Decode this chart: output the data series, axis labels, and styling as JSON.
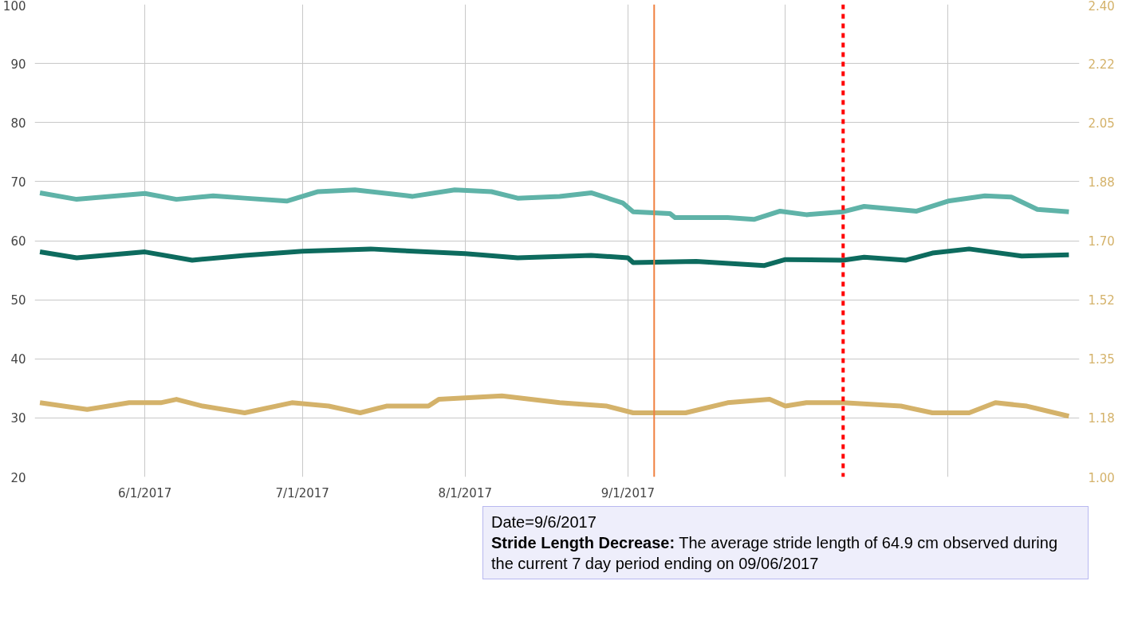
{
  "chart_data": {
    "type": "line",
    "xlim": [
      "2017-05-11",
      "2017-11-26"
    ],
    "ylim": [
      20,
      100
    ],
    "y2lim": [
      1.0,
      2.4
    ],
    "xticks": [
      {
        "value": "2017-06-01",
        "label": "6/1/2017"
      },
      {
        "value": "2017-07-01",
        "label": "7/1/2017"
      },
      {
        "value": "2017-08-01",
        "label": "8/1/2017"
      },
      {
        "value": "2017-09-01",
        "label": "9/1/2017"
      },
      {
        "value": "2017-10-01",
        "label": null
      },
      {
        "value": "2017-11-01",
        "label": null
      }
    ],
    "yticks": [
      20,
      30,
      40,
      50,
      60,
      70,
      80,
      90,
      100
    ],
    "y2ticks": [
      {
        "value": 1.0,
        "label": "1.00"
      },
      {
        "value": 1.175,
        "label": "1.18"
      },
      {
        "value": 1.35,
        "label": "1.35"
      },
      {
        "value": 1.525,
        "label": "1.52"
      },
      {
        "value": 1.7,
        "label": "1.70"
      },
      {
        "value": 1.875,
        "label": "1.88"
      },
      {
        "value": 2.05,
        "label": "2.05"
      },
      {
        "value": 2.225,
        "label": "2.22"
      },
      {
        "value": 2.4,
        "label": "2.40"
      }
    ],
    "grid": true,
    "marker": "none",
    "line_style": "solid",
    "series": [
      {
        "color": "#5fb3a8",
        "x": [
          "2017-05-12",
          "2017-05-19",
          "2017-06-01",
          "2017-06-07",
          "2017-06-14",
          "2017-06-20",
          "2017-06-28",
          "2017-07-04",
          "2017-07-11",
          "2017-07-22",
          "2017-07-30",
          "2017-08-06",
          "2017-08-11",
          "2017-08-19",
          "2017-08-25",
          "2017-08-31",
          "2017-09-02",
          "2017-09-09",
          "2017-09-10",
          "2017-09-20",
          "2017-09-25",
          "2017-09-30",
          "2017-10-05",
          "2017-10-12",
          "2017-10-16",
          "2017-10-26",
          "2017-11-01",
          "2017-11-08",
          "2017-11-13",
          "2017-11-18",
          "2017-11-24"
        ],
        "values": [
          68.1,
          67.0,
          68.0,
          67.0,
          67.6,
          67.2,
          66.7,
          68.3,
          68.6,
          67.5,
          68.6,
          68.3,
          67.2,
          67.5,
          68.1,
          66.4,
          64.9,
          64.6,
          63.9,
          63.9,
          63.6,
          65.0,
          64.4,
          64.9,
          65.8,
          65.0,
          66.7,
          67.6,
          67.4,
          65.3,
          64.9
        ]
      },
      {
        "color": "#0d6b5e",
        "x": [
          "2017-05-12",
          "2017-05-19",
          "2017-06-01",
          "2017-06-10",
          "2017-06-20",
          "2017-07-01",
          "2017-07-14",
          "2017-07-20",
          "2017-08-01",
          "2017-08-11",
          "2017-08-25",
          "2017-09-01",
          "2017-09-02",
          "2017-09-14",
          "2017-09-27",
          "2017-10-01",
          "2017-10-12",
          "2017-10-16",
          "2017-10-24",
          "2017-10-29",
          "2017-11-05",
          "2017-11-15",
          "2017-11-24"
        ],
        "values": [
          58.1,
          57.1,
          58.1,
          56.7,
          57.5,
          58.2,
          58.6,
          58.3,
          57.8,
          57.1,
          57.5,
          57.1,
          56.3,
          56.5,
          55.8,
          56.8,
          56.7,
          57.2,
          56.7,
          57.9,
          58.6,
          57.4,
          57.6
        ]
      },
      {
        "color": "#d4b26a",
        "axis": "y2",
        "x": [
          "2017-05-12",
          "2017-05-21",
          "2017-05-29",
          "2017-06-04",
          "2017-06-07",
          "2017-06-12",
          "2017-06-20",
          "2017-06-29",
          "2017-07-06",
          "2017-07-12",
          "2017-07-17",
          "2017-07-25",
          "2017-07-27",
          "2017-08-08",
          "2017-08-19",
          "2017-08-28",
          "2017-09-02",
          "2017-09-12",
          "2017-09-20",
          "2017-09-28",
          "2017-10-01",
          "2017-10-05",
          "2017-10-12",
          "2017-10-23",
          "2017-10-29",
          "2017-11-05",
          "2017-11-10",
          "2017-11-16",
          "2017-11-24"
        ],
        "values": [
          1.22,
          1.2,
          1.22,
          1.22,
          1.23,
          1.21,
          1.19,
          1.22,
          1.21,
          1.19,
          1.21,
          1.21,
          1.23,
          1.24,
          1.22,
          1.21,
          1.19,
          1.19,
          1.22,
          1.23,
          1.21,
          1.22,
          1.22,
          1.21,
          1.19,
          1.19,
          1.22,
          1.21,
          1.18
        ]
      }
    ],
    "ref_lines": [
      {
        "axis": "x",
        "value": "2017-09-06",
        "color": "#f08040",
        "line_style": "solid"
      },
      {
        "axis": "x",
        "value": "2017-10-12",
        "color": "#ff0000",
        "line_style": "dashed"
      }
    ],
    "annotations": [
      "Date=9/6/2017",
      "Stride Length Decrease: The average stride length of 64.9 cm observed during the current 7 day period ending on 09/06/2017"
    ]
  }
}
